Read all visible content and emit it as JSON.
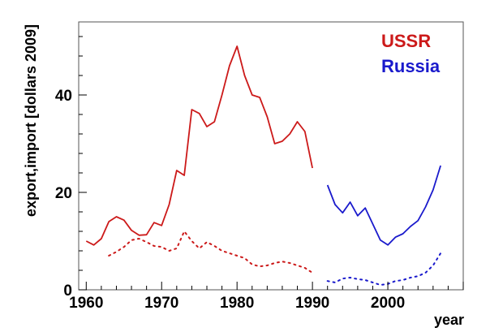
{
  "chart_data": {
    "type": "line",
    "title": "",
    "xlabel": "year",
    "ylabel": "export,import [dollars 2009]",
    "xlim": [
      1959,
      2010
    ],
    "ylim": [
      0,
      55
    ],
    "x_ticks": [
      "1960",
      "1970",
      "1980",
      "1990",
      "2000"
    ],
    "y_ticks": [
      "0",
      "20",
      "40"
    ],
    "legend_position": "top-right",
    "grid": false,
    "series": [
      {
        "name": "USSR",
        "kind": "export",
        "style": "solid",
        "color": "#cc1a1a",
        "points": [
          [
            1960,
            10.0
          ],
          [
            1961,
            9.2
          ],
          [
            1962,
            10.5
          ],
          [
            1963,
            14.0
          ],
          [
            1964,
            15.0
          ],
          [
            1965,
            14.3
          ],
          [
            1966,
            12.2
          ],
          [
            1967,
            11.2
          ],
          [
            1968,
            11.3
          ],
          [
            1969,
            13.8
          ],
          [
            1970,
            13.2
          ],
          [
            1971,
            17.5
          ],
          [
            1972,
            24.5
          ],
          [
            1973,
            23.5
          ],
          [
            1974,
            37.0
          ],
          [
            1975,
            36.2
          ],
          [
            1976,
            33.5
          ],
          [
            1977,
            34.5
          ],
          [
            1978,
            40.0
          ],
          [
            1979,
            46.0
          ],
          [
            1980,
            50.0
          ],
          [
            1981,
            44.0
          ],
          [
            1982,
            40.0
          ],
          [
            1983,
            39.5
          ],
          [
            1984,
            35.5
          ],
          [
            1985,
            30.0
          ],
          [
            1986,
            30.5
          ],
          [
            1987,
            32.0
          ],
          [
            1988,
            34.5
          ],
          [
            1989,
            32.5
          ],
          [
            1990,
            25.0
          ]
        ]
      },
      {
        "name": "USSR",
        "kind": "import",
        "style": "dotted",
        "color": "#cc1a1a",
        "points": [
          [
            1963,
            7.0
          ],
          [
            1964,
            7.8
          ],
          [
            1965,
            8.8
          ],
          [
            1966,
            10.2
          ],
          [
            1967,
            10.5
          ],
          [
            1968,
            9.8
          ],
          [
            1969,
            9.0
          ],
          [
            1970,
            8.8
          ],
          [
            1971,
            8.0
          ],
          [
            1972,
            8.5
          ],
          [
            1973,
            12.0
          ],
          [
            1974,
            10.0
          ],
          [
            1975,
            8.5
          ],
          [
            1976,
            9.8
          ],
          [
            1977,
            9.0
          ],
          [
            1978,
            8.0
          ],
          [
            1979,
            7.5
          ],
          [
            1980,
            7.0
          ],
          [
            1981,
            6.5
          ],
          [
            1982,
            5.2
          ],
          [
            1983,
            4.8
          ],
          [
            1984,
            5.0
          ],
          [
            1985,
            5.5
          ],
          [
            1986,
            5.8
          ],
          [
            1987,
            5.5
          ],
          [
            1988,
            5.0
          ],
          [
            1989,
            4.5
          ],
          [
            1990,
            3.5
          ]
        ]
      },
      {
        "name": "Russia",
        "kind": "export",
        "style": "solid",
        "color": "#1a1acc",
        "points": [
          [
            1992,
            21.5
          ],
          [
            1993,
            17.5
          ],
          [
            1994,
            15.8
          ],
          [
            1995,
            18.0
          ],
          [
            1996,
            15.2
          ],
          [
            1997,
            16.8
          ],
          [
            1998,
            13.5
          ],
          [
            1999,
            10.2
          ],
          [
            2000,
            9.2
          ],
          [
            2001,
            10.8
          ],
          [
            2002,
            11.5
          ],
          [
            2003,
            13.0
          ],
          [
            2004,
            14.2
          ],
          [
            2005,
            17.0
          ],
          [
            2006,
            20.5
          ],
          [
            2007,
            25.5
          ]
        ]
      },
      {
        "name": "Russia",
        "kind": "import",
        "style": "dotted",
        "color": "#1a1acc",
        "points": [
          [
            1992,
            1.8
          ],
          [
            1993,
            1.5
          ],
          [
            1994,
            2.3
          ],
          [
            1995,
            2.5
          ],
          [
            1996,
            2.2
          ],
          [
            1997,
            2.0
          ],
          [
            1998,
            1.5
          ],
          [
            1999,
            1.0
          ],
          [
            2000,
            1.2
          ],
          [
            2001,
            1.8
          ],
          [
            2002,
            2.0
          ],
          [
            2003,
            2.5
          ],
          [
            2004,
            2.8
          ],
          [
            2005,
            3.5
          ],
          [
            2006,
            5.0
          ],
          [
            2007,
            7.5
          ]
        ]
      }
    ],
    "legend": [
      {
        "label": "USSR",
        "color": "#cc1a1a"
      },
      {
        "label": "Russia",
        "color": "#1a1acc"
      }
    ]
  }
}
